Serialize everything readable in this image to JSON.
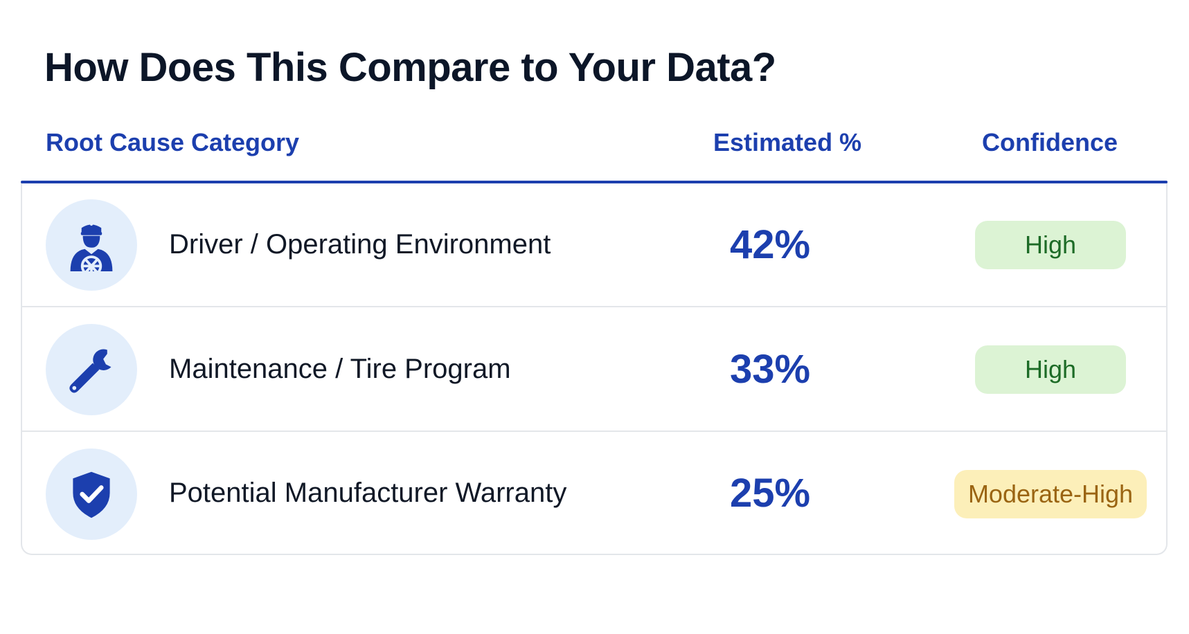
{
  "title": "How Does This Compare to Your Data?",
  "columns": {
    "category": "Root Cause Category",
    "estimated": "Estimated %",
    "confidence": "Confidence"
  },
  "colors": {
    "accent": "#1c3fae",
    "icon_bg": "#e3eefb",
    "high_bg": "#dcf3d4",
    "high_text": "#1c6b26",
    "moderate_bg": "#fcefb9",
    "moderate_text": "#9a6412"
  },
  "rows": [
    {
      "icon": "driver-icon",
      "category": "Driver / Operating Environment",
      "estimated": "42%",
      "confidence": "High"
    },
    {
      "icon": "wrench-icon",
      "category": "Maintenance / Tire Program",
      "estimated": "33%",
      "confidence": "High"
    },
    {
      "icon": "shield-check-icon",
      "category": "Potential Manufacturer Warranty",
      "estimated": "25%",
      "confidence": "Moderate-High"
    }
  ]
}
